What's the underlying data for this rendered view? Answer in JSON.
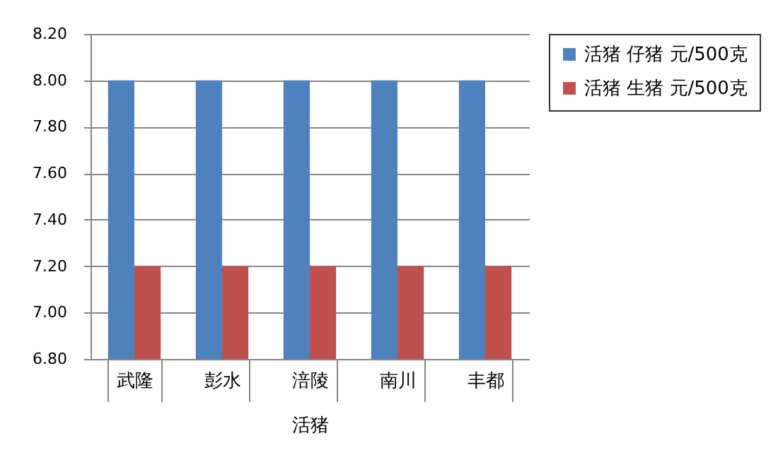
{
  "chart_data": {
    "type": "bar",
    "categories": [
      "武隆",
      "彭水",
      "涪陵",
      "南川",
      "丰都"
    ],
    "xlabel": "活猪",
    "series": [
      {
        "name": "活猪 仔猪 元/500克",
        "color": "#4f81bd",
        "values": [
          8.0,
          8.0,
          8.0,
          8.0,
          8.0
        ]
      },
      {
        "name": "活猪 生猪 元/500克",
        "color": "#c0504d",
        "values": [
          7.2,
          7.2,
          7.2,
          7.2,
          7.2
        ]
      }
    ],
    "ylim": [
      6.8,
      8.2
    ],
    "yticks": [
      {
        "value": 6.8,
        "label": "6.80"
      },
      {
        "value": 7.0,
        "label": "7.00"
      },
      {
        "value": 7.2,
        "label": "7.20"
      },
      {
        "value": 7.4,
        "label": "7.40"
      },
      {
        "value": 7.6,
        "label": "7.60"
      },
      {
        "value": 7.8,
        "label": "7.80"
      },
      {
        "value": 8.0,
        "label": "8.00"
      },
      {
        "value": 8.2,
        "label": "8.20"
      }
    ],
    "grid": "y",
    "legend": "right"
  }
}
